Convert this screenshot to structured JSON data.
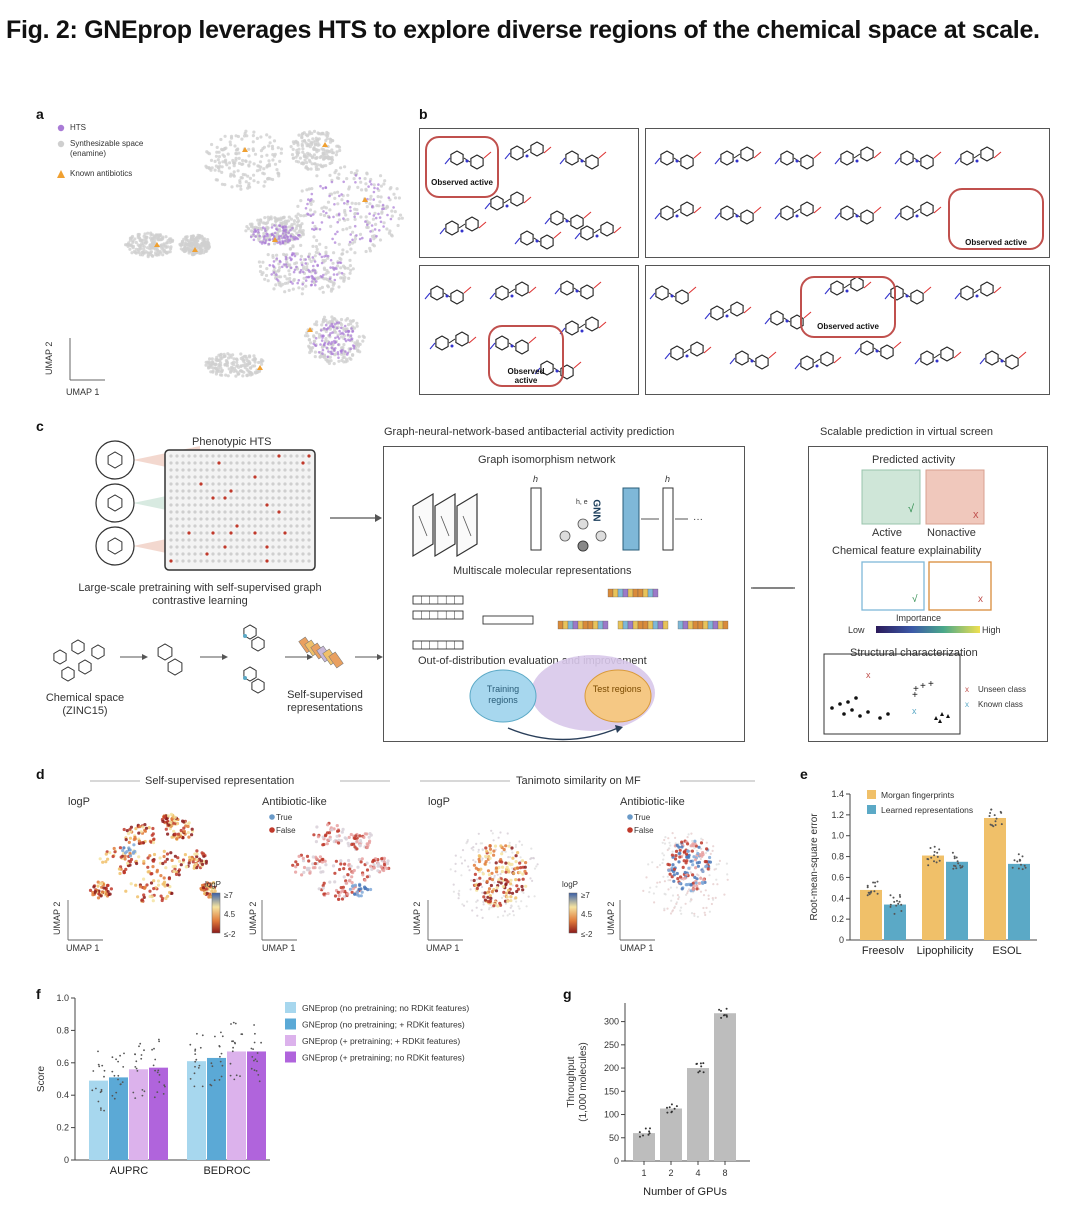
{
  "figure": {
    "title": "Fig. 2: GNEprop leverages HTS to explore diverse regions of the chemical space at scale."
  },
  "panel_a": {
    "label": "a",
    "legend": [
      "HTS",
      "Synthesizable space (enamine)",
      "Known antibiotics"
    ],
    "colors": {
      "hts": "#a97bd6",
      "synth": "#cfcfcf",
      "known": "#f0a030"
    },
    "axis_y": "UMAP 2",
    "axis_x": "UMAP 1"
  },
  "panel_b": {
    "label": "b",
    "observed_active": "Observed active"
  },
  "panel_c": {
    "label": "c",
    "phenotypic_hts": "Phenotypic HTS",
    "pretraining": "Large-scale pretraining with self-supervised graph contrastive learning",
    "chemical_space": "Chemical space (ZINC15)",
    "self_sup_rep": "Self-supervised representations",
    "gnn_title": "Graph-neural-network-based antibacterial activity prediction",
    "gin": "Graph isomorphism network",
    "gnn_label": "GNN",
    "multiscale": "Multiscale molecular representations",
    "ood": "Out-of-distribution evaluation and improvement",
    "training_regions": "Training regions",
    "test_regions": "Test regions",
    "scalable": "Scalable prediction in virtual screen",
    "predicted_activity": "Predicted activity",
    "active": "Active",
    "nonactive": "Nonactive",
    "explainability": "Chemical feature explainability",
    "importance": "Importance",
    "low": "Low",
    "high": "High",
    "structural": "Structural characterization",
    "unseen": "Unseen class",
    "known": "Known class"
  },
  "panel_d": {
    "label": "d",
    "group1": "Self-supervised representation",
    "group2": "Tanimoto similarity on MF",
    "logp": "logP",
    "antibiotic_like": "Antibiotic-like",
    "true": "True",
    "false": "False",
    "logp_scale": [
      "≥7",
      "4.5",
      "≤-2"
    ],
    "axis_y": "UMAP 2",
    "axis_x": "UMAP 1"
  },
  "panel_e": {
    "label": "e",
    "chart_data": {
      "type": "bar",
      "categories": [
        "Freesolv",
        "Lipophilicity",
        "ESOL"
      ],
      "series": [
        {
          "name": "Morgan fingerprints",
          "values": [
            0.48,
            0.81,
            1.17
          ],
          "color": "#f0c069"
        },
        {
          "name": "Learned representations",
          "values": [
            0.34,
            0.75,
            0.73
          ],
          "color": "#5ba9c6"
        }
      ],
      "ylabel": "Root-mean-square error",
      "ylim": [
        0,
        1.4
      ],
      "yticks": [
        "0",
        "0.2",
        "0.4",
        "0.6",
        "0.8",
        "1.0",
        "1.2",
        "1.4"
      ]
    }
  },
  "panel_f": {
    "label": "f",
    "chart_data": {
      "type": "bar",
      "categories": [
        "AUPRC",
        "BEDROC"
      ],
      "series": [
        {
          "name": "GNEprop (no pretraining; no RDKit features)",
          "values": [
            0.49,
            0.61
          ],
          "color": "#a7d7ee"
        },
        {
          "name": "GNEprop (no pretraining; + RDKit features)",
          "values": [
            0.51,
            0.63
          ],
          "color": "#5ba9d6"
        },
        {
          "name": "GNEprop (+ pretraining; + RDKit features)",
          "values": [
            0.56,
            0.67
          ],
          "color": "#dcb2ec"
        },
        {
          "name": "GNEprop (+ pretraining; no RDKit features)",
          "values": [
            0.57,
            0.67
          ],
          "color": "#b064dc"
        }
      ],
      "ylabel": "Score",
      "ylim": [
        0,
        1.0
      ],
      "yticks": [
        "0",
        "0.2",
        "0.4",
        "0.6",
        "0.8",
        "1.0"
      ]
    }
  },
  "panel_g": {
    "label": "g",
    "chart_data": {
      "type": "bar",
      "categories": [
        "1",
        "2",
        "4",
        "8"
      ],
      "values": [
        60,
        113,
        200,
        318
      ],
      "ylabel": "Throughput (1,000 molecules)",
      "xlabel": "Number of GPUs",
      "ylim": [
        0,
        340
      ],
      "yticks": [
        "0",
        "50",
        "100",
        "150",
        "200",
        "250",
        "300"
      ],
      "color": "#bdbdbd"
    }
  }
}
